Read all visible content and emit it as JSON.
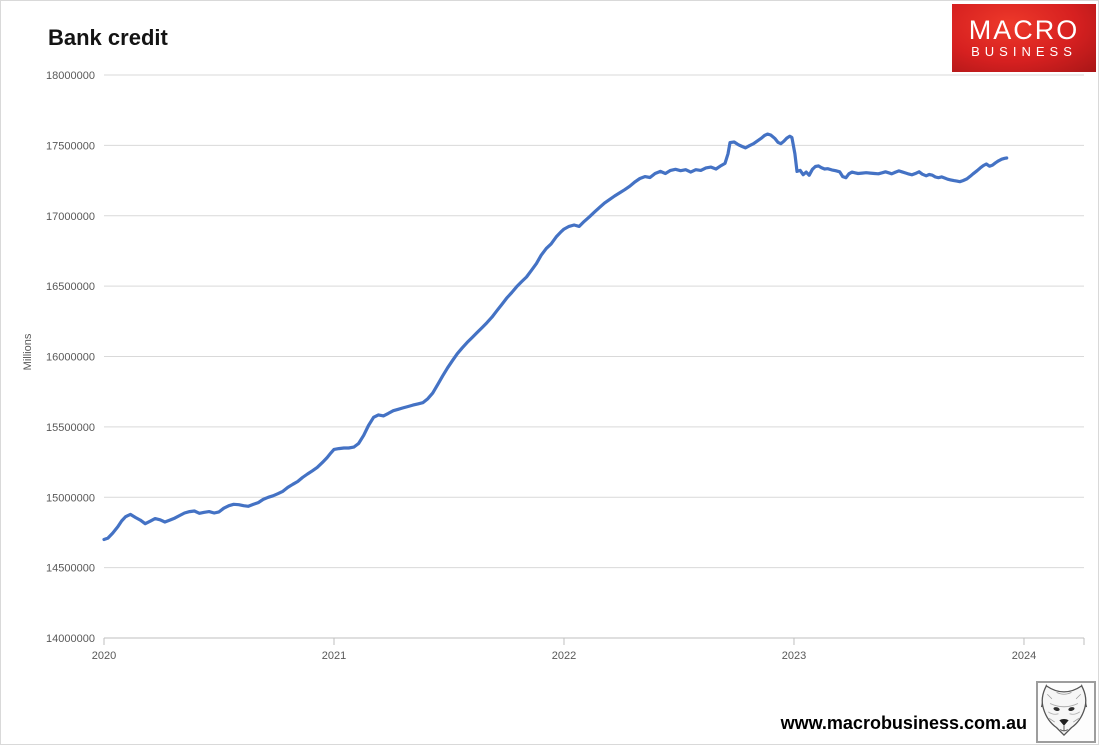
{
  "header": {
    "title": "Bank credit"
  },
  "logo": {
    "line1": "MACRO",
    "line2": "BUSINESS",
    "bg_color": "#d62020",
    "text_color": "#ffffff"
  },
  "footer": {
    "url": "www.macrobusiness.com.au",
    "wolf_icon": "fox-sketch-icon"
  },
  "colors": {
    "line": "#4472c4",
    "grid": "#d9d9d9",
    "axis": "#bfbfbf",
    "tick_text": "#595959",
    "title_text": "#141414"
  },
  "chart_data": {
    "type": "line",
    "title": "Bank credit",
    "xlabel": "",
    "ylabel": "Millions",
    "ylim": [
      14000000,
      18000000
    ],
    "xlim": [
      2020,
      2024.261
    ],
    "yticks": [
      14000000,
      14500000,
      15000000,
      15500000,
      16000000,
      16500000,
      17000000,
      17500000,
      18000000
    ],
    "xticks": [
      2020,
      2021,
      2022,
      2023,
      2024
    ],
    "grid": "horizontal",
    "legend": "none",
    "line_color": "#4472c4",
    "grid_color": "#d9d9d9",
    "axis_color": "#bfbfbf",
    "tick_color": "#595959",
    "series": [
      {
        "name": "Bank credit (millions)",
        "points": [
          [
            2020.0,
            14700000
          ],
          [
            2020.017,
            14710000
          ],
          [
            2020.038,
            14745000
          ],
          [
            2020.06,
            14790000
          ],
          [
            2020.077,
            14832000
          ],
          [
            2020.094,
            14862000
          ],
          [
            2020.115,
            14878000
          ],
          [
            2020.137,
            14856000
          ],
          [
            2020.158,
            14838000
          ],
          [
            2020.179,
            14812000
          ],
          [
            2020.201,
            14830000
          ],
          [
            2020.222,
            14848000
          ],
          [
            2020.244,
            14840000
          ],
          [
            2020.265,
            14824000
          ],
          [
            2020.286,
            14838000
          ],
          [
            2020.308,
            14852000
          ],
          [
            2020.329,
            14870000
          ],
          [
            2020.35,
            14888000
          ],
          [
            2020.372,
            14898000
          ],
          [
            2020.393,
            14902000
          ],
          [
            2020.415,
            14886000
          ],
          [
            2020.436,
            14893000
          ],
          [
            2020.457,
            14898000
          ],
          [
            2020.479,
            14888000
          ],
          [
            2020.5,
            14896000
          ],
          [
            2020.521,
            14922000
          ],
          [
            2020.543,
            14940000
          ],
          [
            2020.564,
            14950000
          ],
          [
            2020.586,
            14947000
          ],
          [
            2020.607,
            14940000
          ],
          [
            2020.628,
            14936000
          ],
          [
            2020.65,
            14950000
          ],
          [
            2020.671,
            14962000
          ],
          [
            2020.692,
            14985000
          ],
          [
            2020.714,
            15000000
          ],
          [
            2020.735,
            15010000
          ],
          [
            2020.756,
            15025000
          ],
          [
            2020.778,
            15042000
          ],
          [
            2020.799,
            15070000
          ],
          [
            2020.821,
            15092000
          ],
          [
            2020.842,
            15112000
          ],
          [
            2020.863,
            15140000
          ],
          [
            2020.885,
            15165000
          ],
          [
            2020.906,
            15188000
          ],
          [
            2020.927,
            15212000
          ],
          [
            2020.949,
            15246000
          ],
          [
            2020.97,
            15282000
          ],
          [
            2020.987,
            15316000
          ],
          [
            2021.0,
            15340000
          ],
          [
            2021.021,
            15346000
          ],
          [
            2021.043,
            15350000
          ],
          [
            2021.064,
            15350000
          ],
          [
            2021.086,
            15356000
          ],
          [
            2021.107,
            15382000
          ],
          [
            2021.129,
            15440000
          ],
          [
            2021.15,
            15510000
          ],
          [
            2021.172,
            15568000
          ],
          [
            2021.193,
            15585000
          ],
          [
            2021.215,
            15578000
          ],
          [
            2021.236,
            15596000
          ],
          [
            2021.258,
            15615000
          ],
          [
            2021.279,
            15625000
          ],
          [
            2021.3,
            15635000
          ],
          [
            2021.322,
            15645000
          ],
          [
            2021.343,
            15655000
          ],
          [
            2021.365,
            15663000
          ],
          [
            2021.386,
            15672000
          ],
          [
            2021.408,
            15700000
          ],
          [
            2021.429,
            15740000
          ],
          [
            2021.451,
            15800000
          ],
          [
            2021.472,
            15860000
          ],
          [
            2021.494,
            15920000
          ],
          [
            2021.515,
            15970000
          ],
          [
            2021.536,
            16020000
          ],
          [
            2021.558,
            16062000
          ],
          [
            2021.579,
            16100000
          ],
          [
            2021.601,
            16135000
          ],
          [
            2021.622,
            16170000
          ],
          [
            2021.644,
            16205000
          ],
          [
            2021.665,
            16240000
          ],
          [
            2021.687,
            16280000
          ],
          [
            2021.708,
            16325000
          ],
          [
            2021.73,
            16370000
          ],
          [
            2021.751,
            16415000
          ],
          [
            2021.773,
            16455000
          ],
          [
            2021.794,
            16495000
          ],
          [
            2021.815,
            16530000
          ],
          [
            2021.837,
            16565000
          ],
          [
            2021.858,
            16610000
          ],
          [
            2021.88,
            16660000
          ],
          [
            2021.901,
            16720000
          ],
          [
            2021.923,
            16768000
          ],
          [
            2021.944,
            16800000
          ],
          [
            2021.966,
            16850000
          ],
          [
            2021.987,
            16886000
          ],
          [
            2022.0,
            16905000
          ],
          [
            2022.022,
            16924000
          ],
          [
            2022.044,
            16934000
          ],
          [
            2022.066,
            16924000
          ],
          [
            2022.088,
            16960000
          ],
          [
            2022.11,
            16992000
          ],
          [
            2022.132,
            17025000
          ],
          [
            2022.154,
            17058000
          ],
          [
            2022.176,
            17090000
          ],
          [
            2022.198,
            17115000
          ],
          [
            2022.22,
            17140000
          ],
          [
            2022.242,
            17162000
          ],
          [
            2022.264,
            17185000
          ],
          [
            2022.286,
            17210000
          ],
          [
            2022.308,
            17240000
          ],
          [
            2022.33,
            17265000
          ],
          [
            2022.352,
            17278000
          ],
          [
            2022.374,
            17272000
          ],
          [
            2022.396,
            17300000
          ],
          [
            2022.419,
            17315000
          ],
          [
            2022.441,
            17300000
          ],
          [
            2022.463,
            17322000
          ],
          [
            2022.485,
            17330000
          ],
          [
            2022.507,
            17320000
          ],
          [
            2022.529,
            17327000
          ],
          [
            2022.551,
            17310000
          ],
          [
            2022.573,
            17327000
          ],
          [
            2022.595,
            17322000
          ],
          [
            2022.617,
            17340000
          ],
          [
            2022.639,
            17346000
          ],
          [
            2022.661,
            17332000
          ],
          [
            2022.683,
            17356000
          ],
          [
            2022.7,
            17372000
          ],
          [
            2022.713,
            17440000
          ],
          [
            2022.722,
            17520000
          ],
          [
            2022.74,
            17524000
          ],
          [
            2022.758,
            17505000
          ],
          [
            2022.775,
            17492000
          ],
          [
            2022.789,
            17482000
          ],
          [
            2022.806,
            17498000
          ],
          [
            2022.824,
            17512000
          ],
          [
            2022.841,
            17532000
          ],
          [
            2022.859,
            17552000
          ],
          [
            2022.872,
            17570000
          ],
          [
            2022.885,
            17580000
          ],
          [
            2022.899,
            17574000
          ],
          [
            2022.916,
            17550000
          ],
          [
            2022.93,
            17522000
          ],
          [
            2022.943,
            17512000
          ],
          [
            2022.956,
            17530000
          ],
          [
            2022.969,
            17552000
          ],
          [
            2022.982,
            17565000
          ],
          [
            2022.991,
            17556000
          ],
          [
            2023.004,
            17440000
          ],
          [
            2023.013,
            17315000
          ],
          [
            2023.027,
            17322000
          ],
          [
            2023.04,
            17292000
          ],
          [
            2023.053,
            17310000
          ],
          [
            2023.066,
            17288000
          ],
          [
            2023.08,
            17330000
          ],
          [
            2023.093,
            17350000
          ],
          [
            2023.106,
            17354000
          ],
          [
            2023.119,
            17342000
          ],
          [
            2023.133,
            17332000
          ],
          [
            2023.146,
            17334000
          ],
          [
            2023.164,
            17326000
          ],
          [
            2023.181,
            17320000
          ],
          [
            2023.199,
            17312000
          ],
          [
            2023.212,
            17278000
          ],
          [
            2023.226,
            17270000
          ],
          [
            2023.239,
            17298000
          ],
          [
            2023.252,
            17310000
          ],
          [
            2023.265,
            17305000
          ],
          [
            2023.279,
            17300000
          ],
          [
            2023.296,
            17303000
          ],
          [
            2023.314,
            17306000
          ],
          [
            2023.332,
            17303000
          ],
          [
            2023.35,
            17300000
          ],
          [
            2023.367,
            17298000
          ],
          [
            2023.385,
            17306000
          ],
          [
            2023.398,
            17312000
          ],
          [
            2023.412,
            17305000
          ],
          [
            2023.425,
            17298000
          ],
          [
            2023.442,
            17310000
          ],
          [
            2023.456,
            17319000
          ],
          [
            2023.469,
            17312000
          ],
          [
            2023.487,
            17303000
          ],
          [
            2023.5,
            17296000
          ],
          [
            2023.513,
            17291000
          ],
          [
            2023.531,
            17302000
          ],
          [
            2023.544,
            17312000
          ],
          [
            2023.558,
            17295000
          ],
          [
            2023.575,
            17284000
          ],
          [
            2023.588,
            17293000
          ],
          [
            2023.602,
            17288000
          ],
          [
            2023.615,
            17275000
          ],
          [
            2023.628,
            17270000
          ],
          [
            2023.642,
            17276000
          ],
          [
            2023.655,
            17268000
          ],
          [
            2023.668,
            17260000
          ],
          [
            2023.681,
            17255000
          ],
          [
            2023.695,
            17250000
          ],
          [
            2023.708,
            17246000
          ],
          [
            2023.721,
            17242000
          ],
          [
            2023.735,
            17250000
          ],
          [
            2023.752,
            17262000
          ],
          [
            2023.766,
            17280000
          ],
          [
            2023.779,
            17298000
          ],
          [
            2023.796,
            17320000
          ],
          [
            2023.81,
            17340000
          ],
          [
            2023.823,
            17356000
          ],
          [
            2023.836,
            17368000
          ],
          [
            2023.85,
            17352000
          ],
          [
            2023.863,
            17360000
          ],
          [
            2023.876,
            17376000
          ],
          [
            2023.889,
            17390000
          ],
          [
            2023.903,
            17402000
          ],
          [
            2023.916,
            17408000
          ],
          [
            2023.925,
            17410000
          ]
        ]
      }
    ]
  }
}
